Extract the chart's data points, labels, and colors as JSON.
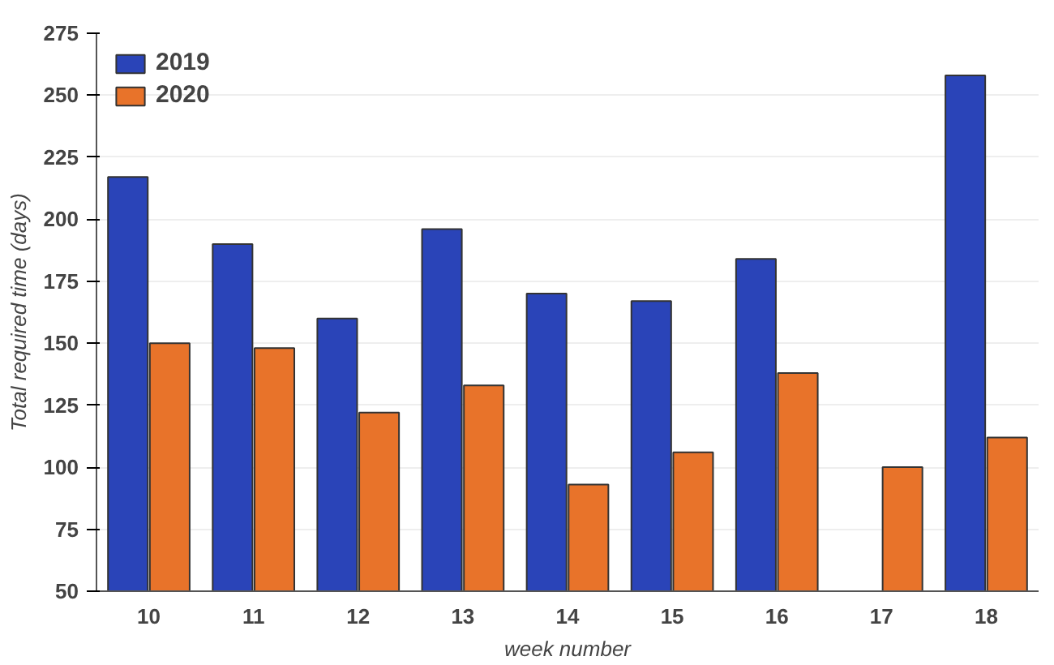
{
  "chart_data": {
    "type": "bar",
    "xlabel": "week number",
    "ylabel": "Total required time (days)",
    "categories": [
      "10",
      "11",
      "12",
      "13",
      "14",
      "15",
      "16",
      "17",
      "18"
    ],
    "series": [
      {
        "name": "2019",
        "color": "#2a44b8",
        "values": [
          217,
          190,
          160,
          196,
          170,
          167,
          184,
          null,
          258
        ]
      },
      {
        "name": "2020",
        "color": "#e8732a",
        "values": [
          150,
          148,
          122,
          133,
          93,
          106,
          138,
          100,
          112
        ]
      }
    ],
    "ylim": [
      50,
      275
    ],
    "yticks": [
      50,
      75,
      100,
      125,
      150,
      175,
      200,
      225,
      250,
      275
    ],
    "grid": "y",
    "legend": "top left"
  }
}
